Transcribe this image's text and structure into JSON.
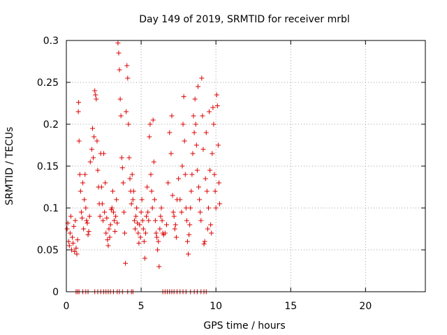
{
  "chart_data": {
    "type": "scatter",
    "title": "Day 149 of 2019, SRMTID for receiver mrbl",
    "xlabel": "GPS time / hours",
    "ylabel": "SRMTID / TECUs",
    "xlim": [
      0,
      24
    ],
    "ylim": [
      0,
      0.3
    ],
    "xticks": [
      0,
      5,
      10,
      15,
      20
    ],
    "xtick_labels": [
      "0",
      "5",
      "10",
      "15",
      "20"
    ],
    "yticks": [
      0,
      0.05,
      0.1,
      0.15,
      0.2,
      0.25,
      0.3
    ],
    "ytick_labels": [
      "0",
      "0.05",
      "0.1",
      "0.15",
      "0.2",
      "0.25",
      "0.3"
    ],
    "grid": true,
    "marker": "+",
    "color": "#dd0000",
    "series": [
      {
        "name": "SRMTID",
        "points": [
          [
            0.05,
            0.075
          ],
          [
            0.1,
            0.082
          ],
          [
            0.15,
            0.06
          ],
          [
            0.2,
            0.055
          ],
          [
            0.25,
            0.07
          ],
          [
            0.3,
            0.09
          ],
          [
            0.35,
            0.05
          ],
          [
            0.4,
            0.065
          ],
          [
            0.45,
            0.058
          ],
          [
            0.5,
            0.078
          ],
          [
            0.55,
            0.048
          ],
          [
            0.6,
            0.085
          ],
          [
            0.65,
            0.052
          ],
          [
            0.7,
            0.045
          ],
          [
            0.75,
            0.062
          ],
          [
            0.8,
            0.215
          ],
          [
            0.82,
            0.226
          ],
          [
            0.85,
            0.18
          ],
          [
            0.9,
            0.14
          ],
          [
            0.95,
            0.12
          ],
          [
            1.0,
            0.095
          ],
          [
            1.05,
            0.088
          ],
          [
            1.1,
            0.13
          ],
          [
            1.15,
            0.075
          ],
          [
            1.2,
            0.11
          ],
          [
            1.25,
            0.14
          ],
          [
            1.3,
            0.1
          ],
          [
            1.35,
            0.085
          ],
          [
            1.4,
            0.082
          ],
          [
            1.45,
            0.068
          ],
          [
            1.5,
            0.072
          ],
          [
            1.55,
            0.09
          ],
          [
            1.6,
            0.155
          ],
          [
            1.7,
            0.17
          ],
          [
            1.75,
            0.195
          ],
          [
            1.8,
            0.16
          ],
          [
            1.85,
            0.185
          ],
          [
            1.9,
            0.24
          ],
          [
            1.95,
            0.235
          ],
          [
            2.0,
            0.23
          ],
          [
            2.05,
            0.18
          ],
          [
            2.1,
            0.145
          ],
          [
            2.15,
            0.125
          ],
          [
            2.2,
            0.105
          ],
          [
            2.25,
            0.09
          ],
          [
            2.3,
            0.165
          ],
          [
            2.35,
            0.125
          ],
          [
            2.4,
            0.105
          ],
          [
            2.45,
            0.085
          ],
          [
            2.5,
            0.165
          ],
          [
            2.55,
            0.095
          ],
          [
            2.6,
            0.13
          ],
          [
            2.65,
            0.07
          ],
          [
            2.7,
            0.088
          ],
          [
            2.75,
            0.062
          ],
          [
            2.8,
            0.055
          ],
          [
            2.85,
            0.075
          ],
          [
            2.9,
            0.065
          ],
          [
            2.95,
            0.08
          ],
          [
            3.0,
            0.098
          ],
          [
            3.05,
            0.1
          ],
          [
            3.1,
            0.12
          ],
          [
            3.15,
            0.095
          ],
          [
            3.2,
            0.085
          ],
          [
            3.25,
            0.072
          ],
          [
            3.3,
            0.09
          ],
          [
            3.35,
            0.11
          ],
          [
            3.4,
            0.082
          ],
          [
            3.45,
            0.297
          ],
          [
            3.5,
            0.285
          ],
          [
            3.55,
            0.265
          ],
          [
            3.6,
            0.23
          ],
          [
            3.65,
            0.21
          ],
          [
            3.7,
            0.16
          ],
          [
            3.75,
            0.148
          ],
          [
            3.8,
            0.13
          ],
          [
            3.85,
            0.095
          ],
          [
            3.9,
            0.07
          ],
          [
            3.95,
            0.034
          ],
          [
            4.0,
            0.215
          ],
          [
            4.05,
            0.27
          ],
          [
            4.1,
            0.255
          ],
          [
            4.15,
            0.2
          ],
          [
            4.2,
            0.16
          ],
          [
            4.25,
            0.135
          ],
          [
            4.3,
            0.12
          ],
          [
            4.35,
            0.105
          ],
          [
            4.4,
            0.14
          ],
          [
            4.45,
            0.11
          ],
          [
            4.5,
            0.12
          ],
          [
            4.55,
            0.085
          ],
          [
            4.6,
            0.075
          ],
          [
            4.65,
            0.09
          ],
          [
            4.7,
            0.1
          ],
          [
            4.75,
            0.082
          ],
          [
            4.8,
            0.07
          ],
          [
            4.85,
            0.058
          ],
          [
            4.9,
            0.08
          ],
          [
            4.95,
            0.065
          ],
          [
            5.0,
            0.095
          ],
          [
            5.05,
            0.11
          ],
          [
            5.1,
            0.085
          ],
          [
            5.15,
            0.075
          ],
          [
            5.2,
            0.06
          ],
          [
            5.25,
            0.04
          ],
          [
            5.3,
            0.07
          ],
          [
            5.35,
            0.09
          ],
          [
            5.4,
            0.125
          ],
          [
            5.45,
            0.095
          ],
          [
            5.5,
            0.085
          ],
          [
            5.55,
            0.185
          ],
          [
            5.6,
            0.2
          ],
          [
            5.65,
            0.14
          ],
          [
            5.7,
            0.12
          ],
          [
            5.75,
            0.1
          ],
          [
            5.8,
            0.205
          ],
          [
            5.85,
            0.155
          ],
          [
            5.9,
            0.11
          ],
          [
            5.95,
            0.085
          ],
          [
            6.0,
            0.07
          ],
          [
            6.05,
            0.065
          ],
          [
            6.1,
            0.05
          ],
          [
            6.15,
            0.06
          ],
          [
            6.2,
            0.03
          ],
          [
            6.25,
            0.075
          ],
          [
            6.3,
            0.09
          ],
          [
            6.35,
            0.1
          ],
          [
            6.4,
            0.085
          ],
          [
            6.45,
            0.07
          ],
          [
            6.5,
            0.068
          ],
          [
            6.6,
            0.07
          ],
          [
            6.7,
            0.08
          ],
          [
            6.8,
            0.13
          ],
          [
            6.9,
            0.19
          ],
          [
            7.0,
            0.165
          ],
          [
            7.05,
            0.21
          ],
          [
            7.1,
            0.115
          ],
          [
            7.15,
            0.095
          ],
          [
            7.2,
            0.09
          ],
          [
            7.25,
            0.075
          ],
          [
            7.3,
            0.08
          ],
          [
            7.35,
            0.065
          ],
          [
            7.4,
            0.11
          ],
          [
            7.5,
            0.135
          ],
          [
            7.6,
            0.11
          ],
          [
            7.7,
            0.095
          ],
          [
            7.75,
            0.15
          ],
          [
            7.8,
            0.2
          ],
          [
            7.85,
            0.233
          ],
          [
            7.9,
            0.18
          ],
          [
            7.95,
            0.14
          ],
          [
            8.0,
            0.1
          ],
          [
            8.05,
            0.085
          ],
          [
            8.1,
            0.06
          ],
          [
            8.15,
            0.045
          ],
          [
            8.2,
            0.068
          ],
          [
            8.25,
            0.08
          ],
          [
            8.3,
            0.1
          ],
          [
            8.35,
            0.12
          ],
          [
            8.4,
            0.14
          ],
          [
            8.45,
            0.165
          ],
          [
            8.5,
            0.21
          ],
          [
            8.55,
            0.19
          ],
          [
            8.6,
            0.23
          ],
          [
            8.65,
            0.2
          ],
          [
            8.7,
            0.175
          ],
          [
            8.75,
            0.145
          ],
          [
            8.8,
            0.245
          ],
          [
            8.85,
            0.125
          ],
          [
            8.9,
            0.11
          ],
          [
            8.95,
            0.095
          ],
          [
            9.0,
            0.085
          ],
          [
            9.05,
            0.255
          ],
          [
            9.1,
            0.21
          ],
          [
            9.15,
            0.17
          ],
          [
            9.2,
            0.057
          ],
          [
            9.25,
            0.06
          ],
          [
            9.3,
            0.135
          ],
          [
            9.35,
            0.19
          ],
          [
            9.4,
            0.12
          ],
          [
            9.45,
            0.075
          ],
          [
            9.5,
            0.1
          ],
          [
            9.55,
            0.215
          ],
          [
            9.6,
            0.145
          ],
          [
            9.65,
            0.08
          ],
          [
            9.7,
            0.07
          ],
          [
            9.75,
            0.165
          ],
          [
            9.8,
            0.22
          ],
          [
            9.85,
            0.2
          ],
          [
            9.9,
            0.14
          ],
          [
            9.95,
            0.12
          ],
          [
            10.0,
            0.1
          ],
          [
            10.05,
            0.235
          ],
          [
            10.1,
            0.222
          ],
          [
            10.15,
            0.175
          ],
          [
            10.2,
            0.13
          ],
          [
            10.25,
            0.105
          ],
          [
            0.65,
            0.0
          ],
          [
            0.75,
            0.0
          ],
          [
            0.85,
            0.0
          ],
          [
            1.1,
            0.0
          ],
          [
            1.3,
            0.0
          ],
          [
            1.45,
            0.0
          ],
          [
            1.9,
            0.0
          ],
          [
            2.1,
            0.0
          ],
          [
            2.3,
            0.0
          ],
          [
            2.5,
            0.0
          ],
          [
            2.65,
            0.0
          ],
          [
            2.8,
            0.0
          ],
          [
            2.95,
            0.0
          ],
          [
            3.15,
            0.0
          ],
          [
            3.4,
            0.0
          ],
          [
            3.55,
            0.0
          ],
          [
            3.75,
            0.0
          ],
          [
            4.1,
            0.0
          ],
          [
            4.35,
            0.0
          ],
          [
            4.45,
            0.0
          ],
          [
            6.45,
            0.0
          ],
          [
            6.6,
            0.0
          ],
          [
            6.75,
            0.0
          ],
          [
            6.9,
            0.0
          ],
          [
            7.05,
            0.0
          ],
          [
            7.2,
            0.0
          ],
          [
            7.4,
            0.0
          ],
          [
            7.6,
            0.0
          ],
          [
            7.8,
            0.0
          ],
          [
            8.0,
            0.0
          ],
          [
            8.3,
            0.0
          ],
          [
            8.55,
            0.0
          ],
          [
            8.75,
            0.0
          ],
          [
            9.0,
            0.0
          ],
          [
            9.2,
            0.0
          ],
          [
            9.35,
            0.0
          ]
        ]
      }
    ]
  }
}
